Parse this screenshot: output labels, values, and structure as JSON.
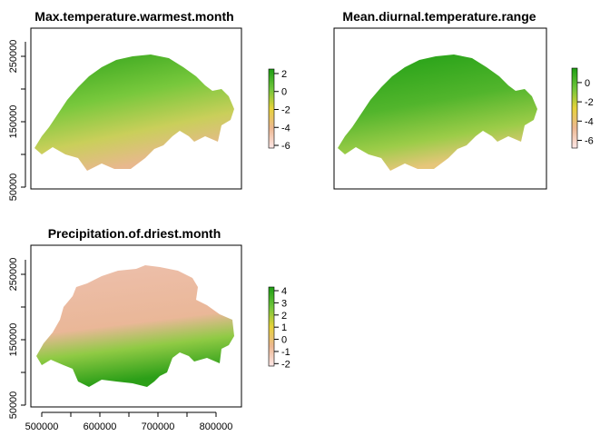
{
  "chart_data": [
    {
      "type": "heatmap",
      "title": "Max.temperature.warmest.month",
      "xlabel": "",
      "ylabel": "",
      "y_ticks": [
        50000,
        150000,
        250000
      ],
      "y_tick_labels": [
        "50000",
        "150000",
        "250000"
      ],
      "legend_ticks": [
        2,
        0,
        -2,
        -4,
        -6
      ],
      "legend_tick_labels": [
        "2",
        "0",
        "-2",
        "-4",
        "-6"
      ],
      "value_range": [
        -6.3,
        2.5
      ],
      "palette": [
        "#fde7e7",
        "#edb892",
        "#e6d23a",
        "#6fc53b",
        "#1e9e14"
      ],
      "grid": false,
      "legend_position": "right"
    },
    {
      "type": "heatmap",
      "title": "Mean.diurnal.temperature.range",
      "xlabel": "",
      "ylabel": "",
      "legend_ticks": [
        0,
        -2,
        -4,
        -6
      ],
      "legend_tick_labels": [
        "0",
        "-2",
        "-4",
        "-6"
      ],
      "value_range": [
        -6.8,
        1.5
      ],
      "palette": [
        "#fde7e7",
        "#edb892",
        "#e6d23a",
        "#6fc53b",
        "#1e9e14"
      ],
      "grid": false,
      "legend_position": "right"
    },
    {
      "type": "heatmap",
      "title": "Precipitation.of.driest.month",
      "xlabel": "",
      "ylabel": "",
      "x_ticks": [
        500000,
        600000,
        700000,
        800000
      ],
      "x_tick_labels": [
        "500000",
        "600000",
        "700000",
        "800000"
      ],
      "y_ticks": [
        50000,
        150000,
        250000
      ],
      "y_tick_labels": [
        "50000",
        "150000",
        "250000"
      ],
      "legend_ticks": [
        4,
        3,
        2,
        1,
        0,
        -1,
        -2
      ],
      "legend_tick_labels": [
        "4",
        "3",
        "2",
        "1",
        "0",
        "-1",
        "-2"
      ],
      "value_range": [
        -2.2,
        4.3
      ],
      "palette": [
        "#fde7e7",
        "#edb892",
        "#e6d23a",
        "#6fc53b",
        "#1e9e14"
      ],
      "grid": false,
      "legend_position": "right"
    }
  ]
}
